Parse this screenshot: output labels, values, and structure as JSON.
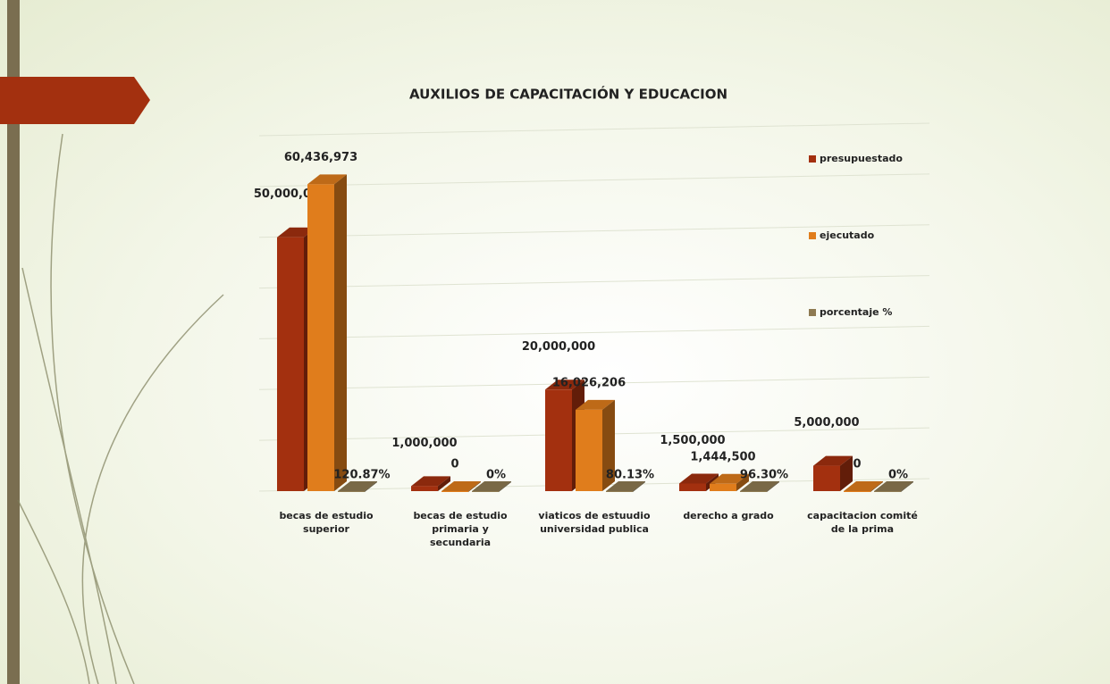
{
  "chart_data": {
    "type": "bar",
    "title": "AUXILIOS DE CAPACITACIÓN Y EDUCACION",
    "categories": [
      "becas de estudio superior",
      "becas de estudio primaria y secundaria",
      "viaticos de estuudio universidad publica",
      "derecho a grado",
      "capacitacion comité de la prima"
    ],
    "series": [
      {
        "name": "presupuestado",
        "color": "#a3300f",
        "values": [
          50000000,
          1000000,
          20000000,
          1500000,
          5000000
        ],
        "value_labels": [
          "50,000,000",
          "1,000,000",
          "20,000,000",
          "1,500,000",
          "5,000,000"
        ]
      },
      {
        "name": "ejecutado",
        "color": "#e07d1c",
        "values": [
          60436973,
          0,
          16026206,
          1444500,
          0
        ],
        "value_labels": [
          "60,436,973",
          "0",
          "16,026,206",
          "1,444,500",
          "0"
        ]
      },
      {
        "name": "porcentaje %",
        "color": "#8e7a52",
        "values": [
          120.87,
          0,
          80.13,
          96.3,
          0
        ],
        "value_labels": [
          "120.87%",
          "0%",
          "80.13%",
          "96.30%",
          "0%"
        ]
      }
    ],
    "ylim": [
      0,
      70000000
    ],
    "yticks": [
      0,
      10000000,
      20000000,
      30000000,
      40000000,
      50000000,
      60000000,
      70000000
    ],
    "grid": true,
    "legend": "right"
  }
}
